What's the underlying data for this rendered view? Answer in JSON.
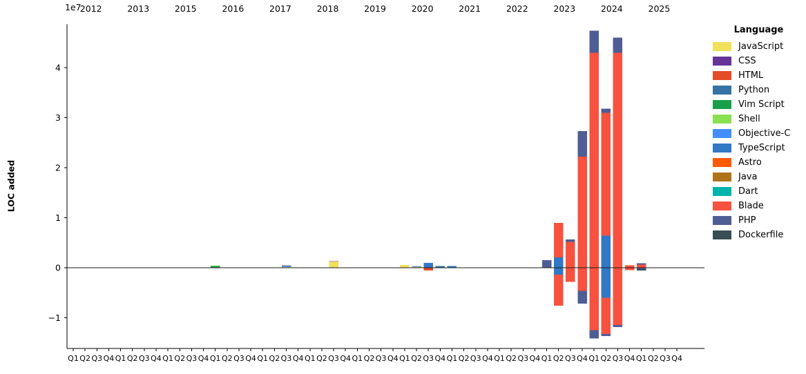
{
  "chart_data": {
    "type": "bar",
    "stacked": true,
    "ylabel": "LOC added",
    "y_offset_label": "1e7",
    "grid": false,
    "legend": {
      "title": "Language",
      "position": "right"
    },
    "languages": [
      {
        "name": "JavaScript",
        "color": "#f1e05a"
      },
      {
        "name": "CSS",
        "color": "#663399"
      },
      {
        "name": "HTML",
        "color": "#e34c26"
      },
      {
        "name": "Python",
        "color": "#3572a5"
      },
      {
        "name": "Vim Script",
        "color": "#199f4a"
      },
      {
        "name": "Shell",
        "color": "#89e051"
      },
      {
        "name": "Objective-C",
        "color": "#438eff"
      },
      {
        "name": "TypeScript",
        "color": "#3178c6"
      },
      {
        "name": "Astro",
        "color": "#ff5a03"
      },
      {
        "name": "Java",
        "color": "#b07219"
      },
      {
        "name": "Dart",
        "color": "#00b4ab"
      },
      {
        "name": "Blade",
        "color": "#f7523f"
      },
      {
        "name": "PHP",
        "color": "#4f5d95"
      },
      {
        "name": "Dockerfile",
        "color": "#384d54"
      }
    ],
    "years": [
      "2012",
      "2013",
      "2015",
      "2016",
      "2017",
      "2018",
      "2019",
      "2020",
      "2021",
      "2022",
      "2023",
      "2024",
      "2025"
    ],
    "quarters": [
      "Q1",
      "Q2",
      "Q3",
      "Q4"
    ],
    "yticks": [
      {
        "label": "4",
        "value": 40000000
      },
      {
        "label": "3",
        "value": 30000000
      },
      {
        "label": "2",
        "value": 20000000
      },
      {
        "label": "1",
        "value": 10000000
      },
      {
        "label": "0",
        "value": 0
      },
      {
        "label": "−1",
        "value": -10000000
      }
    ],
    "ylim": [
      -16100000,
      48700000
    ],
    "bars": [
      {
        "year": "2016",
        "quarter": "Q1",
        "segments": [
          {
            "lang": "Vim Script",
            "added": 370000
          },
          {
            "lang": "Shell",
            "added": 30000
          }
        ]
      },
      {
        "year": "2017",
        "quarter": "Q3",
        "segments": [
          {
            "lang": "JavaScript",
            "added": 140000
          },
          {
            "lang": "Objective-C",
            "added": 280000
          },
          {
            "lang": "Java",
            "added": 40000
          }
        ]
      },
      {
        "year": "2018",
        "quarter": "Q3",
        "segments": [
          {
            "lang": "JavaScript",
            "added": 1250000
          },
          {
            "lang": "CSS",
            "added": 60000
          }
        ]
      },
      {
        "year": "2020",
        "quarter": "Q1",
        "segments": [
          {
            "lang": "JavaScript",
            "added": 550000
          }
        ]
      },
      {
        "year": "2020",
        "quarter": "Q2",
        "segments": [
          {
            "lang": "JavaScript",
            "added": 140000
          },
          {
            "lang": "TypeScript",
            "added": 160000
          }
        ]
      },
      {
        "year": "2020",
        "quarter": "Q3",
        "segments": [
          {
            "lang": "TypeScript",
            "added": 1000000
          },
          {
            "lang": "HTML",
            "added": -550000
          }
        ]
      },
      {
        "year": "2020",
        "quarter": "Q4",
        "segments": [
          {
            "lang": "Python",
            "added": 320000
          },
          {
            "lang": "Dart",
            "added": 50000
          }
        ]
      },
      {
        "year": "2021",
        "quarter": "Q1",
        "segments": [
          {
            "lang": "TypeScript",
            "added": 370000
          }
        ]
      },
      {
        "year": "2023",
        "quarter": "Q1",
        "segments": [
          {
            "lang": "PHP",
            "added": 1550000
          }
        ]
      },
      {
        "year": "2023",
        "quarter": "Q2",
        "segments": [
          {
            "lang": "TypeScript",
            "added": 2100000
          },
          {
            "lang": "Blade",
            "added": 6900000
          },
          {
            "lang": "TypeScript",
            "added": -1400000
          },
          {
            "lang": "Blade",
            "added": -6200000
          }
        ]
      },
      {
        "year": "2023",
        "quarter": "Q3",
        "segments": [
          {
            "lang": "Blade",
            "added": 5200000
          },
          {
            "lang": "PHP",
            "added": 460000
          },
          {
            "lang": "Blade",
            "added": -2800000
          }
        ]
      },
      {
        "year": "2023",
        "quarter": "Q4",
        "segments": [
          {
            "lang": "Blade",
            "added": 22200000
          },
          {
            "lang": "PHP",
            "added": 5100000
          },
          {
            "lang": "Blade",
            "added": -4650000
          },
          {
            "lang": "PHP",
            "added": -2500000
          }
        ]
      },
      {
        "year": "2024",
        "quarter": "Q1",
        "segments": [
          {
            "lang": "Blade",
            "added": 43000000
          },
          {
            "lang": "PHP",
            "added": 4400000
          },
          {
            "lang": "Blade",
            "added": -12450000
          },
          {
            "lang": "PHP",
            "added": -1700000
          }
        ]
      },
      {
        "year": "2024",
        "quarter": "Q2",
        "segments": [
          {
            "lang": "TypeScript",
            "added": 6400000
          },
          {
            "lang": "Blade",
            "added": 24600000
          },
          {
            "lang": "PHP",
            "added": 800000
          },
          {
            "lang": "TypeScript",
            "added": -6000000
          },
          {
            "lang": "Blade",
            "added": -7250000
          },
          {
            "lang": "PHP",
            "added": -400000
          }
        ]
      },
      {
        "year": "2024",
        "quarter": "Q3",
        "segments": [
          {
            "lang": "Blade",
            "added": 43000000
          },
          {
            "lang": "PHP",
            "added": 3000000
          },
          {
            "lang": "Blade",
            "added": -11450000
          },
          {
            "lang": "PHP",
            "added": -400000
          }
        ]
      },
      {
        "year": "2024",
        "quarter": "Q4",
        "segments": [
          {
            "lang": "Blade",
            "added": 400000
          },
          {
            "lang": "Astro",
            "added": 100000
          },
          {
            "lang": "Blade",
            "added": -500000
          }
        ]
      },
      {
        "year": "2025",
        "quarter": "Q1",
        "segments": [
          {
            "lang": "Blade",
            "added": 650000
          },
          {
            "lang": "PHP",
            "added": 280000
          },
          {
            "lang": "PHP",
            "added": -300000
          },
          {
            "lang": "Dockerfile",
            "added": -250000
          }
        ]
      }
    ]
  }
}
